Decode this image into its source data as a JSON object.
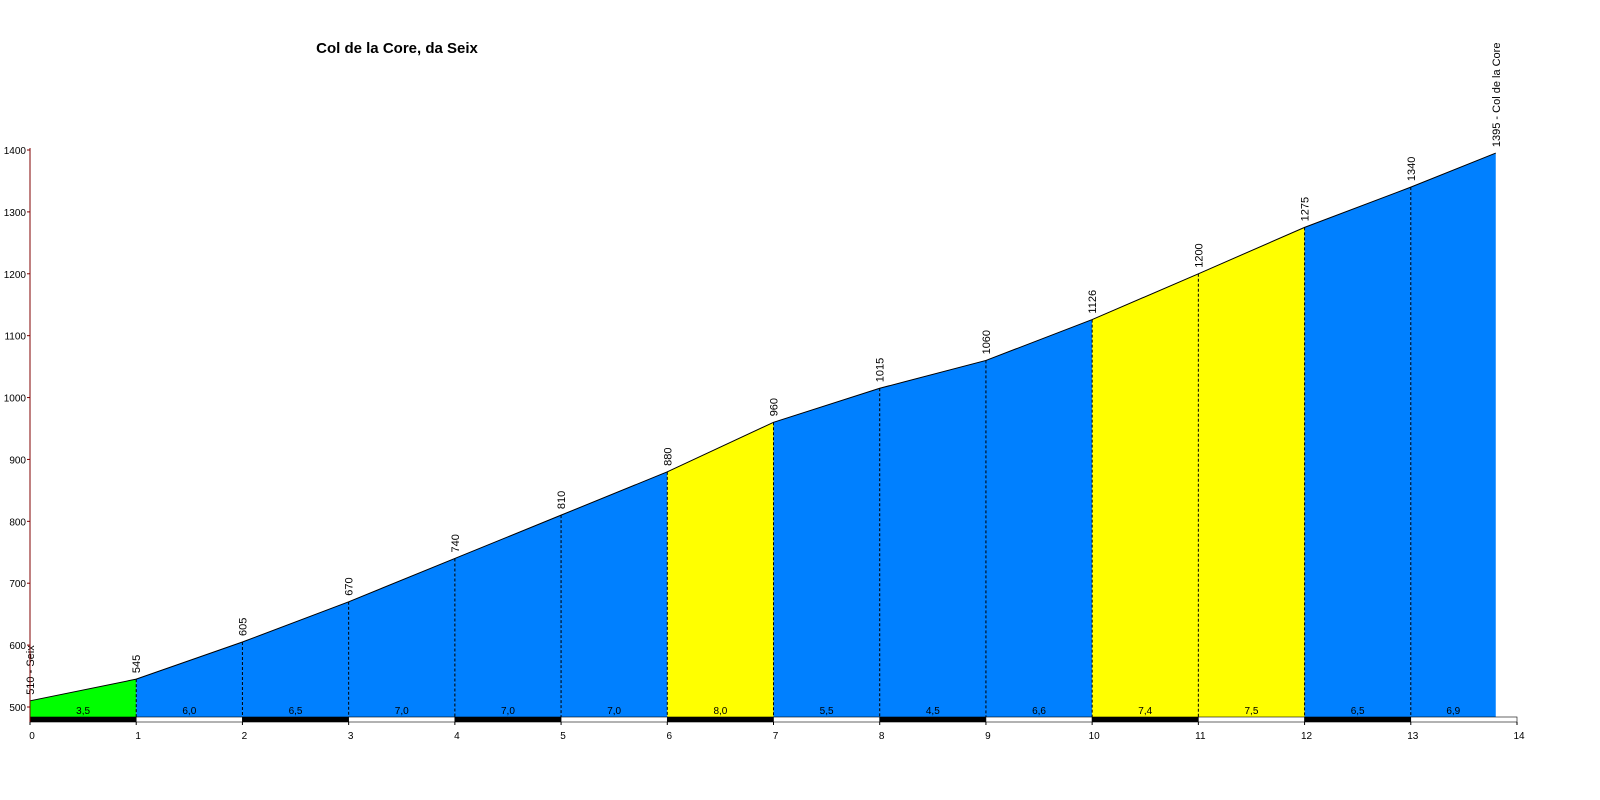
{
  "chart_data": {
    "type": "area",
    "title": "Col de la Core, da Seix",
    "x": [
      0,
      1,
      2,
      3,
      4,
      5,
      6,
      7,
      8,
      9,
      10,
      11,
      12,
      13,
      13.8
    ],
    "values": [
      510,
      545,
      605,
      670,
      740,
      810,
      880,
      960,
      1015,
      1060,
      1126,
      1200,
      1275,
      1340,
      1395
    ],
    "value_labels": [
      "510 - Seix",
      "545",
      "605",
      "670",
      "740",
      "810",
      "880",
      "960",
      "1015",
      "1060",
      "1126",
      "1200",
      "1275",
      "1340",
      "1395 - Col de la Core"
    ],
    "gradients": [
      3.5,
      6.0,
      6.5,
      7.0,
      7.0,
      7.0,
      8.0,
      5.5,
      4.5,
      6.6,
      7.4,
      7.5,
      6.5,
      6.9
    ],
    "gradient_labels": [
      "3,5",
      "6,0",
      "6,5",
      "7,0",
      "7,0",
      "7,0",
      "8,0",
      "5,5",
      "4,5",
      "6,6",
      "7,4",
      "7,5",
      "6,5",
      "6,9"
    ],
    "colors": [
      "#00ff00",
      "#0080ff",
      "#0080ff",
      "#0080ff",
      "#0080ff",
      "#0080ff",
      "#ffff00",
      "#0080ff",
      "#0080ff",
      "#0080ff",
      "#ffff00",
      "#ffff00",
      "#0080ff",
      "#0080ff"
    ],
    "xlim": [
      0,
      14
    ],
    "xticks": [
      0,
      1,
      2,
      3,
      4,
      5,
      6,
      7,
      8,
      9,
      10,
      11,
      12,
      13,
      14
    ],
    "ylim": [
      500,
      1400
    ],
    "yticks": [
      500,
      600,
      700,
      800,
      900,
      1000,
      1100,
      1200,
      1300,
      1400
    ]
  }
}
